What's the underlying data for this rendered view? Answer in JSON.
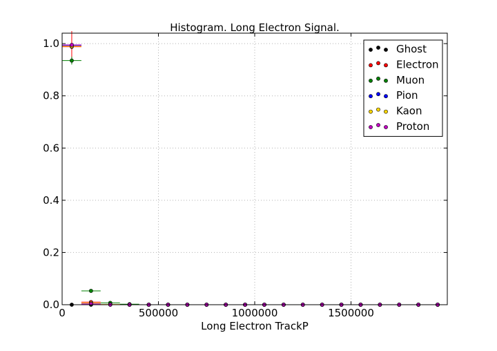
{
  "chart_data": {
    "type": "scatter",
    "title": "Histogram. Long Electron Signal.",
    "xlabel": "Long Electron TrackP",
    "ylabel": "",
    "xlim": [
      0,
      2000000
    ],
    "ylim": [
      0,
      1.04
    ],
    "grid": true,
    "legend_position": "top-right",
    "x_ticks": [
      0,
      500000,
      1000000,
      1500000
    ],
    "x_tick_labels": [
      "0",
      "500000",
      "1000000",
      "1500000"
    ],
    "y_ticks": [
      0.0,
      0.2,
      0.4,
      0.6,
      0.8,
      1.0
    ],
    "y_tick_labels": [
      "0.0",
      "0.2",
      "0.4",
      "0.6",
      "0.8",
      "1.0"
    ],
    "bin_width": 100000,
    "x": [
      50000,
      150000,
      250000,
      350000,
      450000,
      550000,
      650000,
      750000,
      850000,
      950000,
      1050000,
      1150000,
      1250000,
      1350000,
      1450000,
      1550000,
      1650000,
      1750000,
      1850000,
      1950000
    ],
    "series": [
      {
        "name": "Ghost",
        "color": "#000000",
        "values": [
          0.0,
          0.0,
          0.0,
          0.0,
          0.0,
          0.0,
          0.0,
          0.0,
          0.0,
          0.0,
          0.0,
          0.0,
          0.0,
          0.0,
          0.0,
          0.0,
          0.0,
          0.0,
          0.0,
          0.0
        ],
        "errors": [
          0.0,
          0.0,
          0.0,
          0.0,
          0.0,
          0.0,
          0.0,
          0.0,
          0.0,
          0.0,
          0.0,
          0.0,
          0.0,
          0.0,
          0.0,
          0.0,
          0.0,
          0.0,
          0.0,
          0.0
        ]
      },
      {
        "name": "Electron",
        "color": "#ff0000",
        "values": [
          0.988,
          0.01,
          0.001,
          0.0,
          0.0,
          0.0,
          0.0,
          0.0,
          0.0,
          0.0,
          0.0,
          0.0,
          0.0,
          0.0,
          0.0,
          0.0,
          0.0,
          0.0,
          0.0,
          0.0
        ],
        "errors": [
          0.06,
          0.004,
          0.002,
          0.0,
          0.0,
          0.0,
          0.0,
          0.0,
          0.0,
          0.0,
          0.0,
          0.0,
          0.0,
          0.0,
          0.0,
          0.0,
          0.0,
          0.0,
          0.0,
          0.0
        ]
      },
      {
        "name": "Muon",
        "color": "#008000",
        "values": [
          0.935,
          0.053,
          0.007,
          0.002,
          0.0,
          0.0,
          0.0,
          0.0,
          0.0,
          0.0,
          0.0,
          0.0,
          0.0,
          0.0,
          0.0,
          0.0,
          0.0,
          0.0,
          0.0,
          0.0
        ],
        "errors": [
          0.015,
          0.005,
          0.002,
          0.001,
          0.0,
          0.0,
          0.0,
          0.0,
          0.0,
          0.0,
          0.0,
          0.0,
          0.0,
          0.0,
          0.0,
          0.0,
          0.0,
          0.0,
          0.0,
          0.0
        ]
      },
      {
        "name": "Pion",
        "color": "#0000ff",
        "values": [
          0.993,
          0.005,
          0.001,
          0.0,
          0.0,
          0.0,
          0.0,
          0.0,
          0.0,
          0.0,
          0.0,
          0.0,
          0.0,
          0.0,
          0.0,
          0.0,
          0.0,
          0.0,
          0.0,
          0.0
        ],
        "errors": [
          0.005,
          0.002,
          0.001,
          0.0,
          0.0,
          0.0,
          0.0,
          0.0,
          0.0,
          0.0,
          0.0,
          0.0,
          0.0,
          0.0,
          0.0,
          0.0,
          0.0,
          0.0,
          0.0,
          0.0
        ]
      },
      {
        "name": "Kaon",
        "color": "#ffd700",
        "values": [
          0.99,
          0.006,
          0.001,
          0.0,
          0.0,
          0.0,
          0.0,
          0.0,
          0.0,
          0.0,
          0.0,
          0.0,
          0.0,
          0.0,
          0.0,
          0.0,
          0.0,
          0.0,
          0.0,
          0.0
        ],
        "errors": [
          0.004,
          0.002,
          0.001,
          0.0,
          0.0,
          0.0,
          0.0,
          0.0,
          0.0,
          0.0,
          0.0,
          0.0,
          0.0,
          0.0,
          0.0,
          0.0,
          0.0,
          0.0,
          0.0,
          0.0
        ]
      },
      {
        "name": "Proton",
        "color": "#bf00bf",
        "values": [
          0.995,
          0.003,
          0.0,
          0.0,
          0.0,
          0.0,
          0.0,
          0.0,
          0.0,
          0.0,
          0.0,
          0.0,
          0.0,
          0.0,
          0.0,
          0.0,
          0.0,
          0.0,
          0.0,
          0.0
        ],
        "errors": [
          0.004,
          0.002,
          0.0,
          0.0,
          0.0,
          0.0,
          0.0,
          0.0,
          0.0,
          0.0,
          0.0,
          0.0,
          0.0,
          0.0,
          0.0,
          0.0,
          0.0,
          0.0,
          0.0,
          0.0
        ]
      }
    ]
  }
}
